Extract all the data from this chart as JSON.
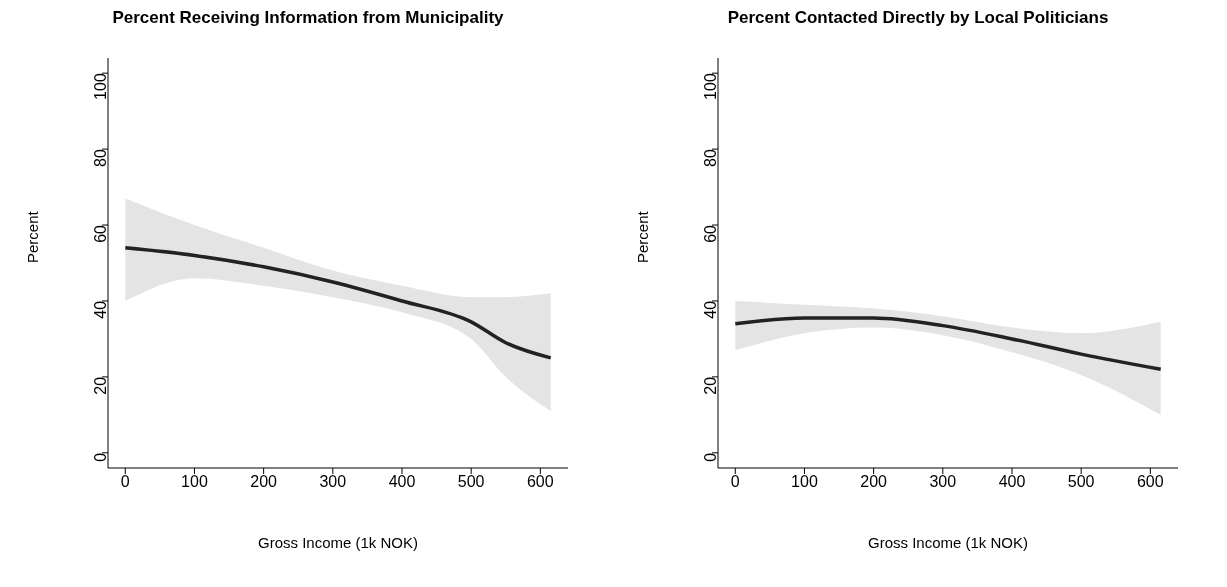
{
  "chart_data": [
    {
      "type": "line",
      "title": "Percent Receiving Information from Municipality",
      "xlabel": "Gross Income (1k NOK)",
      "ylabel": "Percent",
      "xlim": [
        -25,
        640
      ],
      "ylim": [
        -4,
        104
      ],
      "xticks": [
        0,
        100,
        200,
        300,
        400,
        500,
        600
      ],
      "yticks": [
        0,
        20,
        40,
        60,
        80,
        100
      ],
      "series": [
        {
          "color": "#222222",
          "x": [
            0,
            100,
            200,
            300,
            400,
            500,
            550,
            615
          ],
          "values": [
            54,
            52,
            49,
            45,
            40,
            34.5,
            29,
            25
          ],
          "lower": [
            40,
            46,
            44,
            41,
            37,
            30,
            20,
            11
          ],
          "upper": [
            67,
            60,
            54,
            48,
            44,
            41,
            41,
            42
          ]
        }
      ]
    },
    {
      "type": "line",
      "title": "Percent Contacted Directly by Local Politicians",
      "xlabel": "Gross Income (1k NOK)",
      "ylabel": "Percent",
      "xlim": [
        -25,
        640
      ],
      "ylim": [
        -4,
        104
      ],
      "xticks": [
        0,
        100,
        200,
        300,
        400,
        500,
        600
      ],
      "yticks": [
        0,
        20,
        40,
        60,
        80,
        100
      ],
      "series": [
        {
          "color": "#222222",
          "x": [
            0,
            100,
            200,
            300,
            400,
            500,
            615
          ],
          "values": [
            34,
            35.5,
            35.5,
            33.5,
            30,
            26,
            22
          ],
          "lower": [
            27,
            31.5,
            33,
            31,
            26.5,
            20.5,
            10
          ],
          "upper": [
            40,
            39,
            38,
            36,
            33,
            31.5,
            34.5
          ]
        }
      ]
    }
  ]
}
